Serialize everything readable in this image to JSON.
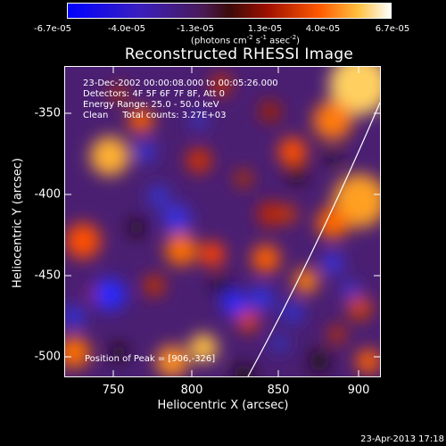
{
  "colorbar": {
    "ticks": [
      "-6.7e-05",
      "-4.0e-05",
      "-1.3e-05",
      "1.3e-05",
      "4.0e-05",
      "6.7e-05"
    ],
    "units_main": "(photons cm",
    "units_exp1": "-2",
    "units_mid": " s",
    "units_exp2": "-1",
    "units_tail": " asec",
    "units_exp3": "-2",
    "units_close": ")"
  },
  "title": "Reconstructed RHESSI Image",
  "annotations": {
    "line1": "23-Dec-2002 00:00:08.000 to 00:05:26.000",
    "line2": "Detectors: 4F 5F 6F 7F 8F, Att 0",
    "line3": "Energy Range: 25.0 - 50.0 keV",
    "line4": "Clean     Total counts: 3.27E+03",
    "peak": "Position of Peak = [906,-326]"
  },
  "axes": {
    "xlabel": "Heliocentric X (arcsec)",
    "ylabel": "Heliocentric Y (arcsec)",
    "xticks": [
      "750",
      "800",
      "850",
      "900"
    ],
    "yticks": [
      "-350",
      "-400",
      "-450",
      "-500"
    ]
  },
  "timestamp": "23-Apr-2013 17:18",
  "colors": {
    "background": "#000000",
    "text": "#ffffff",
    "neg": "#2020ff",
    "mid": "#5a2a8a",
    "hot": "#ff6600",
    "peak": "#ffffb0"
  }
}
